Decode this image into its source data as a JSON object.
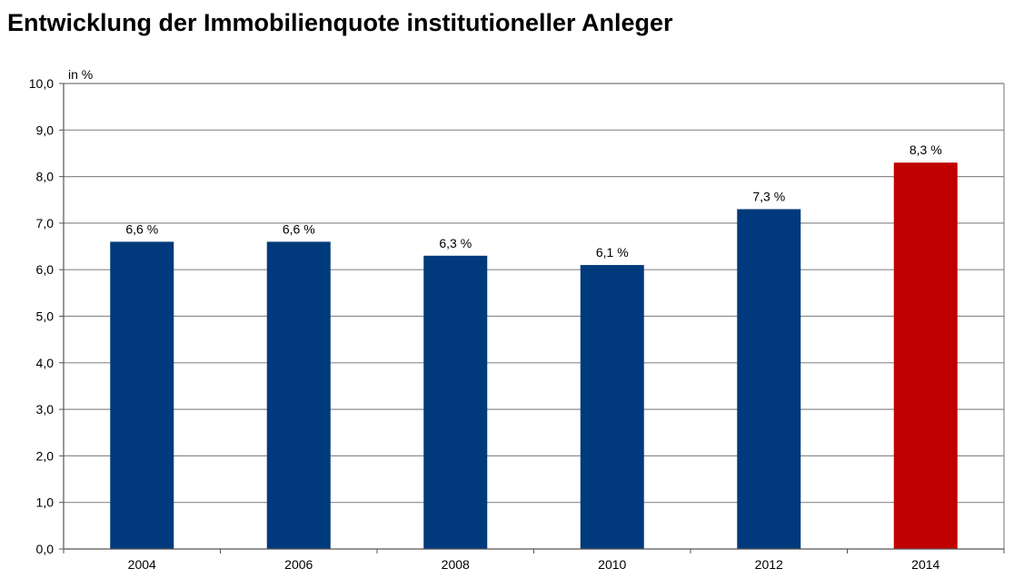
{
  "title": "Entwicklung der Immobilienquote institutioneller Anleger",
  "chart_data": {
    "type": "bar",
    "title": "Entwicklung der Immobilienquote institutioneller Anleger",
    "unit_label": "in %",
    "xlabel": "",
    "ylabel": "",
    "categories": [
      "2004",
      "2006",
      "2008",
      "2010",
      "2012",
      "2014"
    ],
    "values": [
      6.6,
      6.6,
      6.3,
      6.1,
      7.3,
      8.3
    ],
    "data_labels": [
      "6,6 %",
      "6,6 %",
      "6,3 %",
      "6,1 %",
      "7,3 %",
      "8,3 %"
    ],
    "bar_colors": [
      "#003a7c",
      "#003a7c",
      "#003a7c",
      "#003a7c",
      "#003a7c",
      "#c00000"
    ],
    "ylim": [
      0,
      10
    ],
    "yticks": [
      0,
      1,
      2,
      3,
      4,
      5,
      6,
      7,
      8,
      9,
      10
    ],
    "ytick_labels": [
      "0,0",
      "1,0",
      "2,0",
      "3,0",
      "4,0",
      "5,0",
      "6,0",
      "7,0",
      "8,0",
      "9,0",
      "10,0"
    ],
    "grid": true,
    "legend": "none"
  }
}
